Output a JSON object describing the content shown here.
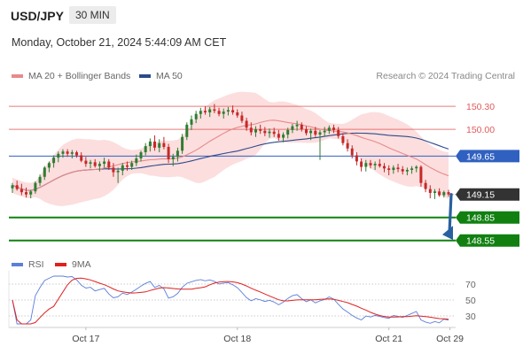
{
  "header": {
    "symbol": "USD/JPY",
    "timeframe": "30 MIN",
    "timestamp": "Monday, October 21, 2024 5:44:09 AM CET"
  },
  "legend": {
    "ma20_label": "MA 20 + Bollinger Bands",
    "ma20_color": "#e88a8a",
    "ma50_label": "MA 50",
    "ma50_color": "#2d4a8a",
    "rsi_label": "RSI",
    "rsi_color": "#5b7fd9",
    "rsi_ma_label": "9MA",
    "rsi_ma_color": "#e02020"
  },
  "credit": "Research © 2024 Trading Central",
  "colors": {
    "up_candle": "#2e7d32",
    "down_candle": "#c62828",
    "band_fill": "#fbd3d3",
    "resistance": "#e05a5a",
    "pivot": "#3060c0",
    "support": "#118011",
    "current": "#333333",
    "arrow": "#2860a0"
  },
  "chart_data": {
    "type": "candlestick",
    "instrument": "USD/JPY",
    "interval": "30 MIN",
    "ylim": [
      148.42,
      150.52
    ],
    "x_axis": {
      "labels": [
        {
          "text": "Oct 17",
          "index": 16
        },
        {
          "text": "Oct 18",
          "index": 49
        },
        {
          "text": "Oct 21",
          "index": 82
        },
        {
          "text": "Oct 29",
          "index": 95.3
        }
      ]
    },
    "levels": [
      {
        "price": 150.3,
        "label": "150.30",
        "kind": "resistance"
      },
      {
        "price": 150.0,
        "label": "150.00",
        "kind": "resistance"
      },
      {
        "price": 149.65,
        "label": "149.65",
        "kind": "pivot"
      },
      {
        "price": 149.15,
        "label": "149.15",
        "kind": "current"
      },
      {
        "price": 148.85,
        "label": "148.85",
        "kind": "support"
      },
      {
        "price": 148.55,
        "label": "148.55",
        "kind": "support"
      }
    ],
    "forecast_arrow": {
      "from_price": 149.15,
      "to_price": 148.58,
      "direction": "down"
    },
    "rsi_ticks": [
      70,
      50,
      30
    ],
    "rsi_ylim": [
      20,
      80
    ],
    "ohlc": [
      [
        149.23,
        149.3,
        149.17,
        149.27
      ],
      [
        149.27,
        149.33,
        149.2,
        149.22
      ],
      [
        149.22,
        149.29,
        149.14,
        149.18
      ],
      [
        149.18,
        149.24,
        149.11,
        149.15
      ],
      [
        149.15,
        149.21,
        149.1,
        149.19
      ],
      [
        149.19,
        149.32,
        149.16,
        149.3
      ],
      [
        149.3,
        149.41,
        149.26,
        149.38
      ],
      [
        149.38,
        149.52,
        149.34,
        149.5
      ],
      [
        149.5,
        149.58,
        149.44,
        149.56
      ],
      [
        149.56,
        149.66,
        149.5,
        149.63
      ],
      [
        149.63,
        149.71,
        149.57,
        149.68
      ],
      [
        149.68,
        149.74,
        149.63,
        149.71
      ],
      [
        149.71,
        149.74,
        149.64,
        149.68
      ],
      [
        149.68,
        149.73,
        149.62,
        149.7
      ],
      [
        149.7,
        149.72,
        149.63,
        149.66
      ],
      [
        149.66,
        149.7,
        149.57,
        149.59
      ],
      [
        149.59,
        149.64,
        149.51,
        149.55
      ],
      [
        149.55,
        149.6,
        149.49,
        149.57
      ],
      [
        149.57,
        149.61,
        149.5,
        149.52
      ],
      [
        149.52,
        149.58,
        149.45,
        149.55
      ],
      [
        149.55,
        149.63,
        149.5,
        149.58
      ],
      [
        149.58,
        149.61,
        149.47,
        149.5
      ],
      [
        149.5,
        149.56,
        149.38,
        149.44
      ],
      [
        149.44,
        149.5,
        149.3,
        149.46
      ],
      [
        149.46,
        149.56,
        149.4,
        149.53
      ],
      [
        149.53,
        149.58,
        149.46,
        149.51
      ],
      [
        149.51,
        149.59,
        149.47,
        149.56
      ],
      [
        149.56,
        149.67,
        149.52,
        149.62
      ],
      [
        149.62,
        149.72,
        149.58,
        149.7
      ],
      [
        149.7,
        149.82,
        149.66,
        149.78
      ],
      [
        149.78,
        149.88,
        149.71,
        149.84
      ],
      [
        149.84,
        149.92,
        149.72,
        149.76
      ],
      [
        149.76,
        149.87,
        149.7,
        149.82
      ],
      [
        149.82,
        149.9,
        149.74,
        149.77
      ],
      [
        149.77,
        149.81,
        149.56,
        149.61
      ],
      [
        149.61,
        149.68,
        149.52,
        149.64
      ],
      [
        149.64,
        149.76,
        149.58,
        149.72
      ],
      [
        149.72,
        149.94,
        149.68,
        149.9
      ],
      [
        149.9,
        150.09,
        149.86,
        150.06
      ],
      [
        150.06,
        150.18,
        149.99,
        150.13
      ],
      [
        150.13,
        150.24,
        150.08,
        150.2
      ],
      [
        150.2,
        150.28,
        150.14,
        150.24
      ],
      [
        150.24,
        150.3,
        150.19,
        150.22
      ],
      [
        150.22,
        150.29,
        150.16,
        150.26
      ],
      [
        150.26,
        150.33,
        150.21,
        150.24
      ],
      [
        150.24,
        150.28,
        150.17,
        150.2
      ],
      [
        150.2,
        150.27,
        150.14,
        150.23
      ],
      [
        150.23,
        150.29,
        150.18,
        150.25
      ],
      [
        150.25,
        150.31,
        150.19,
        150.22
      ],
      [
        150.22,
        150.26,
        150.15,
        150.18
      ],
      [
        150.18,
        150.23,
        150.08,
        150.11
      ],
      [
        150.11,
        150.15,
        149.98,
        150.02
      ],
      [
        150.02,
        150.09,
        149.92,
        149.96
      ],
      [
        149.96,
        150.04,
        149.9,
        150.0
      ],
      [
        150.0,
        150.06,
        149.94,
        149.98
      ],
      [
        149.98,
        150.03,
        149.91,
        149.95
      ],
      [
        149.95,
        150.01,
        149.89,
        149.97
      ],
      [
        149.97,
        150.02,
        149.9,
        149.94
      ],
      [
        149.94,
        149.99,
        149.85,
        149.89
      ],
      [
        149.89,
        149.96,
        149.83,
        149.93
      ],
      [
        149.93,
        150.02,
        149.88,
        149.99
      ],
      [
        149.99,
        150.07,
        149.95,
        150.04
      ],
      [
        150.04,
        150.11,
        149.98,
        150.06
      ],
      [
        150.06,
        150.09,
        149.97,
        150.0
      ],
      [
        150.0,
        150.04,
        149.92,
        149.95
      ],
      [
        149.95,
        150.01,
        149.86,
        149.98
      ],
      [
        149.98,
        150.03,
        149.9,
        149.93
      ],
      [
        149.93,
        149.99,
        149.6,
        149.96
      ],
      [
        149.96,
        150.03,
        149.91,
        149.98
      ],
      [
        149.98,
        150.05,
        149.94,
        150.02
      ],
      [
        150.02,
        150.06,
        149.95,
        149.99
      ],
      [
        149.99,
        150.03,
        149.88,
        149.91
      ],
      [
        149.91,
        149.95,
        149.79,
        149.82
      ],
      [
        149.82,
        149.87,
        149.71,
        149.75
      ],
      [
        149.75,
        149.79,
        149.62,
        149.66
      ],
      [
        149.66,
        149.7,
        149.53,
        149.58
      ],
      [
        149.58,
        149.62,
        149.45,
        149.51
      ],
      [
        149.51,
        149.6,
        149.45,
        149.56
      ],
      [
        149.56,
        149.6,
        149.49,
        149.53
      ],
      [
        149.53,
        149.58,
        149.47,
        149.55
      ],
      [
        149.55,
        149.61,
        149.5,
        149.52
      ],
      [
        149.52,
        149.56,
        149.44,
        149.49
      ],
      [
        149.49,
        149.53,
        149.4,
        149.47
      ],
      [
        149.47,
        149.53,
        149.42,
        149.5
      ],
      [
        149.5,
        149.55,
        149.44,
        149.48
      ],
      [
        149.48,
        149.52,
        149.41,
        149.45
      ],
      [
        149.45,
        149.5,
        149.4,
        149.47
      ],
      [
        149.47,
        149.52,
        149.42,
        149.49
      ],
      [
        149.49,
        149.53,
        149.44,
        149.51
      ],
      [
        149.51,
        149.53,
        149.25,
        149.3
      ],
      [
        149.3,
        149.34,
        149.18,
        149.22
      ],
      [
        149.22,
        149.27,
        149.1,
        149.17
      ],
      [
        149.17,
        149.22,
        149.09,
        149.19
      ],
      [
        149.19,
        149.23,
        149.12,
        149.14
      ],
      [
        149.14,
        149.2,
        149.11,
        149.18
      ],
      [
        149.18,
        149.21,
        149.12,
        149.15
      ]
    ]
  }
}
